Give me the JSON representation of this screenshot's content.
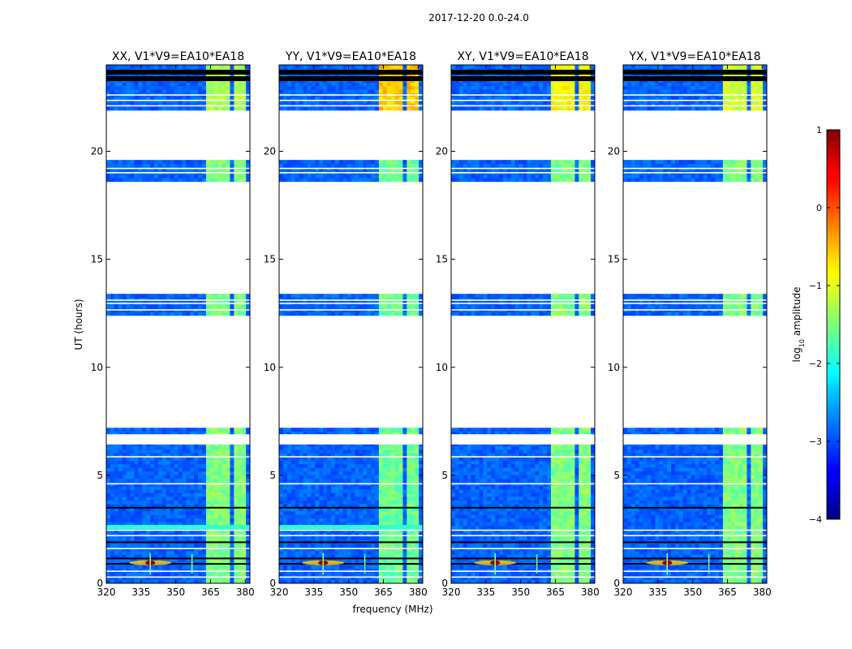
{
  "figure": {
    "suptitle": "2017-12-20 0.0-24.0",
    "xlabel": "frequency (MHz)",
    "ylabel": "UT (hours)"
  },
  "chart_data": {
    "type": "heatmap",
    "x_range": [
      320,
      382
    ],
    "y_range": [
      0,
      24
    ],
    "x_ticks": [
      320,
      335,
      350,
      365,
      380
    ],
    "y_ticks": [
      0,
      5,
      10,
      15,
      20
    ],
    "panels": [
      {
        "title": "XX, V1*V9=EA10*EA18",
        "band_level": -1.5,
        "top_level": -1.3,
        "rfi_level": 0.9
      },
      {
        "title": "YY, V1*V9=EA10*EA18",
        "band_level": -1.6,
        "top_level": -0.6,
        "rfi_level": 0.9
      },
      {
        "title": "XY, V1*V9=EA10*EA18",
        "band_level": -1.5,
        "top_level": -0.9,
        "rfi_level": 0.9
      },
      {
        "title": "YX, V1*V9=EA10*EA18",
        "band_level": -1.5,
        "top_level": -1.1,
        "rfi_level": 0.9
      }
    ],
    "background_level": -2.9,
    "strong_band_mhz": [
      363,
      381
    ],
    "rfi_spike_mhz": 339,
    "rfi_spike_ut": 0.95,
    "weak_spike_mhz": 357,
    "data_blocks_ut": [
      [
        0,
        7.2
      ],
      [
        12.4,
        13.4
      ],
      [
        18.6,
        19.6
      ],
      [
        21.9,
        24
      ]
    ],
    "colorbar": {
      "label": "log10 amplitude",
      "min": -4,
      "max": 1,
      "ticks": [
        1,
        0,
        -1,
        -2,
        -3,
        -4
      ],
      "colormap": "jet"
    }
  }
}
